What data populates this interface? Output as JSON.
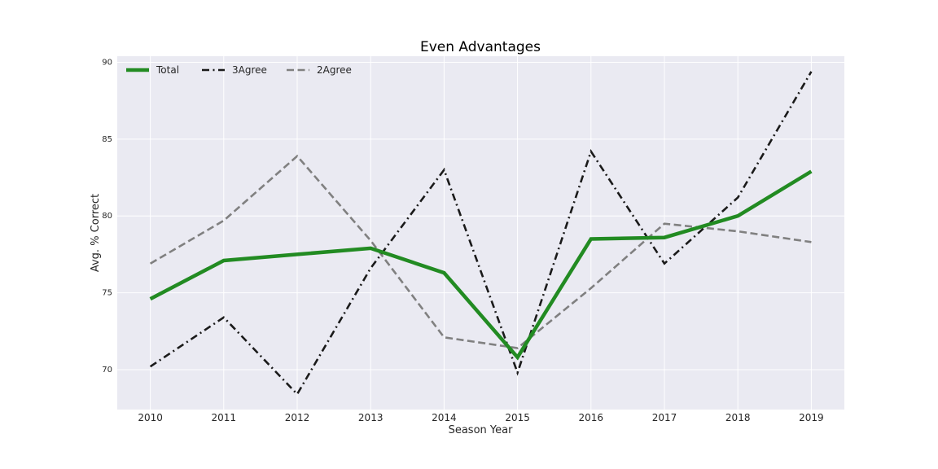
{
  "chart_data": {
    "type": "line",
    "title": "Even Advantages",
    "xlabel": "Season Year",
    "ylabel": "Avg. % Correct",
    "x": [
      2010,
      2011,
      2012,
      2013,
      2014,
      2015,
      2016,
      2017,
      2018,
      2019
    ],
    "xlim": [
      2009.55,
      2019.45
    ],
    "ylim": [
      67.4,
      90.4
    ],
    "yticks": [
      70,
      75,
      80,
      85,
      90
    ],
    "grid": true,
    "legend_position": "top-left",
    "series": [
      {
        "name": "Total",
        "color": "#228b22",
        "style": "solid",
        "values": [
          74.6,
          77.1,
          77.5,
          77.9,
          76.3,
          70.8,
          78.5,
          78.6,
          80.0,
          82.9
        ]
      },
      {
        "name": "3Agree",
        "color": "#1a1a1a",
        "style": "dashdot",
        "values": [
          70.2,
          73.4,
          68.4,
          76.6,
          83.0,
          69.8,
          84.2,
          76.9,
          81.2,
          89.4
        ]
      },
      {
        "name": "2Agree",
        "color": "#808080",
        "style": "dashed",
        "values": [
          76.9,
          79.7,
          83.9,
          78.4,
          72.1,
          71.4,
          75.3,
          79.5,
          79.0,
          78.3
        ]
      }
    ]
  }
}
